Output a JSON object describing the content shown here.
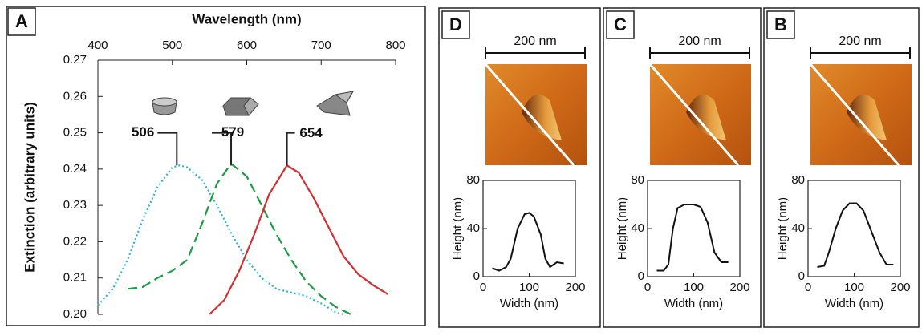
{
  "chart_data": [
    {
      "type": "line",
      "panel": "A",
      "x_label": "Wavelength (nm)",
      "y_label": "Extinction (arbitrary units)",
      "xlim": [
        400,
        800
      ],
      "xticks": [
        400,
        500,
        600,
        700,
        800
      ],
      "ylim": [
        0.2,
        0.27
      ],
      "yticks": [
        {
          "value": 0.2,
          "label": "0.20"
        },
        0.21,
        0.22,
        0.23,
        0.24,
        0.25,
        0.26,
        0.27
      ],
      "peaks": [
        506,
        579,
        654
      ],
      "series": [
        {
          "color": "#29b6d9",
          "style": "dotted",
          "x": [
            400,
            420,
            440,
            460,
            480,
            500,
            510,
            520,
            540,
            560,
            580,
            600,
            620,
            640,
            660,
            680,
            700,
            720,
            730
          ],
          "values": [
            0.2025,
            0.207,
            0.215,
            0.226,
            0.235,
            0.2405,
            0.241,
            0.2405,
            0.237,
            0.23,
            0.222,
            0.215,
            0.21,
            0.207,
            0.206,
            0.205,
            0.203,
            0.2005,
            0.2
          ]
        },
        {
          "color": "#1e9b45",
          "style": "dashed",
          "x": [
            440,
            460,
            480,
            500,
            520,
            540,
            560,
            579,
            600,
            620,
            640,
            660,
            680,
            700,
            720,
            740
          ],
          "values": [
            0.207,
            0.2075,
            0.21,
            0.212,
            0.215,
            0.225,
            0.236,
            0.2415,
            0.238,
            0.23,
            0.222,
            0.215,
            0.209,
            0.205,
            0.202,
            0.2
          ]
        },
        {
          "color": "#d32f2f",
          "style": "solid",
          "x": [
            550,
            570,
            590,
            610,
            630,
            654,
            670,
            690,
            710,
            730,
            750,
            770,
            790
          ],
          "values": [
            0.2,
            0.204,
            0.212,
            0.222,
            0.233,
            0.241,
            0.239,
            0.232,
            0.224,
            0.216,
            0.211,
            0.208,
            0.2055
          ]
        }
      ]
    },
    {
      "type": "line",
      "panel": "D",
      "scale_bar": "200 nm",
      "x_label": "Width (nm)",
      "y_label": "Height (nm)",
      "xlim": [
        0,
        200
      ],
      "xticks": [
        0,
        100,
        200
      ],
      "ylim": [
        0,
        80
      ],
      "yticks": [
        0,
        40,
        80
      ],
      "series": [
        {
          "color": "#111111",
          "style": "solid",
          "x": [
            20,
            35,
            50,
            60,
            75,
            90,
            100,
            110,
            125,
            135,
            145,
            160,
            175
          ],
          "values": [
            7,
            5,
            8,
            15,
            40,
            52,
            53,
            50,
            35,
            15,
            8,
            12,
            11
          ]
        }
      ]
    },
    {
      "type": "line",
      "panel": "C",
      "scale_bar": "200 nm",
      "x_label": "Width (nm)",
      "y_label": "Height (nm)",
      "xlim": [
        0,
        200
      ],
      "xticks": [
        0,
        100,
        200
      ],
      "ylim": [
        0,
        80
      ],
      "yticks": [
        0,
        40,
        80
      ],
      "series": [
        {
          "color": "#111111",
          "style": "solid",
          "x": [
            20,
            35,
            45,
            55,
            65,
            80,
            100,
            115,
            130,
            145,
            160,
            175
          ],
          "values": [
            5,
            5,
            10,
            40,
            57,
            60,
            60,
            58,
            45,
            20,
            12,
            12
          ]
        }
      ]
    },
    {
      "type": "line",
      "panel": "B",
      "scale_bar": "200 nm",
      "x_label": "Width (nm)",
      "y_label": "Height (nm)",
      "xlim": [
        0,
        200
      ],
      "xticks": [
        0,
        100,
        200
      ],
      "ylim": [
        0,
        80
      ],
      "yticks": [
        0,
        40,
        80
      ],
      "series": [
        {
          "color": "#111111",
          "style": "solid",
          "x": [
            20,
            35,
            45,
            60,
            75,
            90,
            105,
            120,
            140,
            155,
            170,
            185
          ],
          "values": [
            8,
            9,
            20,
            40,
            55,
            61,
            61,
            55,
            35,
            20,
            10,
            10
          ]
        }
      ]
    }
  ]
}
